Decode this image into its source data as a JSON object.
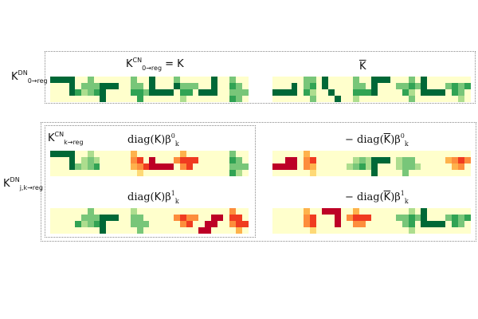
{
  "palette": {
    "0": "#ffffcc",
    "1": "#d9f0a3",
    "2": "#addd8e",
    "3": "#78c679",
    "4": "#31a354",
    "5": "#006837",
    "6": "#fed976",
    "7": "#feb24c",
    "8": "#fd8d3c",
    "9": "#f03b20",
    "10": "#bd0026"
  },
  "labels": {
    "outer_top": {
      "base": "K",
      "sup": "DN",
      "sub": "0→reg"
    },
    "outer_bottom": {
      "base": "K",
      "sup": "DN",
      "sub": "j,k→reg"
    },
    "top_left": {
      "base": "K",
      "sup": "CN",
      "sub": "0→reg",
      "tail": " = K"
    },
    "top_right": {
      "base": "K"
    },
    "bottom_inner": {
      "base": "K",
      "sup": "CN",
      "sub": "k→reg"
    },
    "diag_b0": {
      "prefix": "diag(",
      "base": "K",
      "suffix": ")β",
      "sub": "k",
      "sup": "0"
    },
    "neg_diag_b0": {
      "prefix": "− diag(",
      "base": "K",
      "suffix": ")β",
      "sub": "k",
      "sup": "0"
    },
    "diag_b1": {
      "prefix": "diag(",
      "base": "K",
      "suffix": ")β",
      "sub": "k",
      "sup": "1"
    },
    "neg_diag_b1": {
      "prefix": "− diag(",
      "base": "K",
      "suffix": ")β",
      "sub": "k",
      "sup": "1"
    }
  },
  "kernel_rows": {
    "top_left": [
      [
        "5555",
        "0005",
        "0005",
        "0000"
      ],
      [
        "0030",
        "0333",
        "4234",
        "0000"
      ],
      [
        "0000",
        "5550",
        "5000",
        "5000"
      ],
      [
        "0300",
        "0330",
        "0443",
        "0040"
      ],
      [
        "5000",
        "5000",
        "5555",
        "0000"
      ],
      [
        "3000",
        "5333",
        "0440",
        "0200"
      ],
      [
        "0050",
        "0050",
        "5550",
        "0000"
      ],
      [
        "0300",
        "0430",
        "0333",
        "0430"
      ]
    ],
    "top_right": [
      [
        "0000",
        "0005",
        "5555",
        "0000"
      ],
      [
        "0330",
        "0340",
        "0420",
        "0030"
      ],
      [
        "5000",
        "5000",
        "0500",
        "0050"
      ],
      [
        "0300",
        "0330",
        "0444",
        "0200"
      ],
      [
        "5550",
        "5000",
        "5000",
        "0000"
      ],
      [
        "0030",
        "3343",
        "0420",
        "0030"
      ],
      [
        "5000",
        "5000",
        "5555",
        "0000"
      ],
      [
        "0000",
        "3434",
        "0430",
        "0020"
      ]
    ],
    "diag_b0": [
      [
        "5555",
        "0005",
        "0005",
        "0000"
      ],
      [
        "0020",
        "0232",
        "3234",
        "0000"
      ],
      [
        "0000",
        "0000",
        "0000",
        "0000"
      ],
      [
        "0700",
        "0890",
        "0789",
        "0060"
      ],
      [
        "0000",
        "a000",
        "aaaa",
        "0000"
      ],
      [
        "0700",
        "8999",
        "0890",
        "0000"
      ],
      [
        "0000",
        "0000",
        "0000",
        "0000"
      ],
      [
        "0300",
        "0430",
        "0333",
        "0420"
      ]
    ],
    "neg_diag_b0": [
      [
        "0000",
        "00aa",
        "aaaa",
        "0000"
      ],
      [
        "0700",
        "0890",
        "0870",
        "0060"
      ],
      [
        "0000",
        "0000",
        "0000",
        "0000"
      ],
      [
        "0000",
        "0232",
        "2342",
        "0000"
      ],
      [
        "0000",
        "5550",
        "5000",
        "5000"
      ],
      [
        "0000",
        "2330",
        "2332",
        "0300"
      ],
      [
        "0000",
        "0000",
        "0000",
        "0000"
      ],
      [
        "0000",
        "7898",
        "0780",
        "0000"
      ]
    ],
    "diag_b1": [
      [
        "0000",
        "0000",
        "0000",
        "0000"
      ],
      [
        "0030",
        "0333",
        "4234",
        "0000"
      ],
      [
        "0000",
        "5550",
        "5000",
        "5000"
      ],
      [
        "0200",
        "0330",
        "0333",
        "0030"
      ],
      [
        "0000",
        "0000",
        "0000",
        "0000"
      ],
      [
        "0000",
        "8988",
        "0890",
        "0000"
      ],
      [
        "0000",
        "00aa",
        "0aa0",
        "aa00"
      ],
      [
        "0800",
        "0990",
        "0899",
        "0070"
      ]
    ],
    "neg_diag_b1": [
      [
        "0000",
        "0000",
        "0000",
        "0000"
      ],
      [
        "0700",
        "0890",
        "0890",
        "0060"
      ],
      [
        "aaa0",
        "00a0",
        "00a0",
        "0000"
      ],
      [
        "0700",
        "8999",
        "0880",
        "0000"
      ],
      [
        "0000",
        "0000",
        "0000",
        "0000"
      ],
      [
        "0020",
        "3343",
        "0340",
        "0020"
      ],
      [
        "5000",
        "5000",
        "5555",
        "0000"
      ],
      [
        "0000",
        "3434",
        "0430",
        "0000"
      ]
    ]
  }
}
